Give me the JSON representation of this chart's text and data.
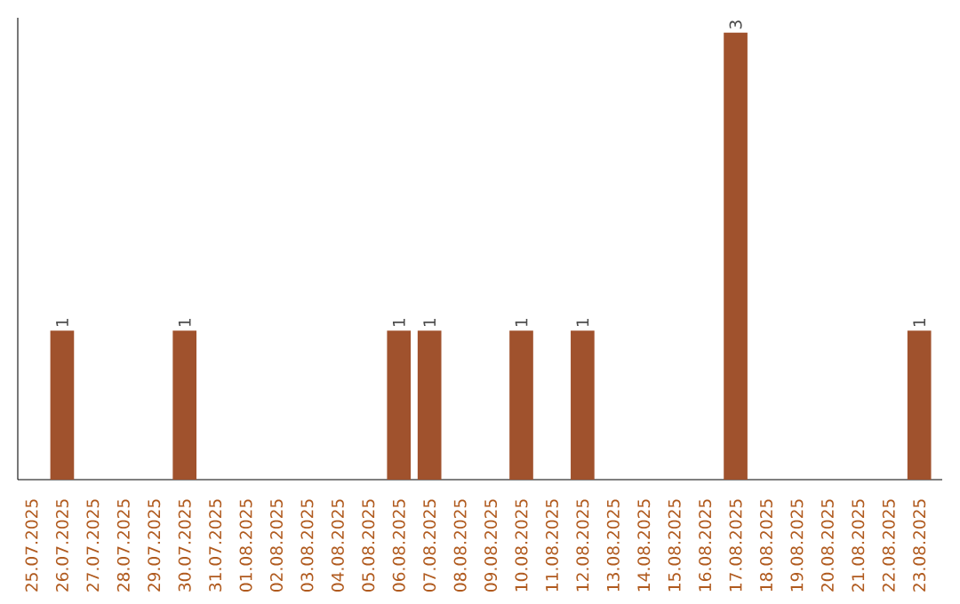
{
  "chart_data": {
    "type": "bar",
    "categories": [
      "25.07.2025",
      "26.07.2025",
      "27.07.2025",
      "28.07.2025",
      "29.07.2025",
      "30.07.2025",
      "31.07.2025",
      "01.08.2025",
      "02.08.2025",
      "03.08.2025",
      "04.08.2025",
      "05.08.2025",
      "06.08.2025",
      "07.08.2025",
      "08.08.2025",
      "09.08.2025",
      "10.08.2025",
      "11.08.2025",
      "12.08.2025",
      "13.08.2025",
      "14.08.2025",
      "15.08.2025",
      "16.08.2025",
      "17.08.2025",
      "18.08.2025",
      "19.08.2025",
      "20.08.2025",
      "21.08.2025",
      "22.08.2025",
      "23.08.2025"
    ],
    "values": [
      0,
      1,
      0,
      0,
      0,
      1,
      0,
      0,
      0,
      0,
      0,
      0,
      1,
      1,
      0,
      0,
      1,
      0,
      1,
      0,
      0,
      0,
      0,
      3,
      0,
      0,
      0,
      0,
      0,
      1
    ],
    "value_labels": [
      null,
      "1",
      null,
      null,
      null,
      "1",
      null,
      null,
      null,
      null,
      null,
      null,
      "1",
      "1",
      null,
      null,
      "1",
      null,
      "1",
      null,
      null,
      null,
      null,
      "3",
      null,
      null,
      null,
      null,
      null,
      "1"
    ],
    "color": "#a0522d",
    "ylim": [
      0,
      3.1
    ],
    "tick_labels": "x",
    "grid": false
  }
}
